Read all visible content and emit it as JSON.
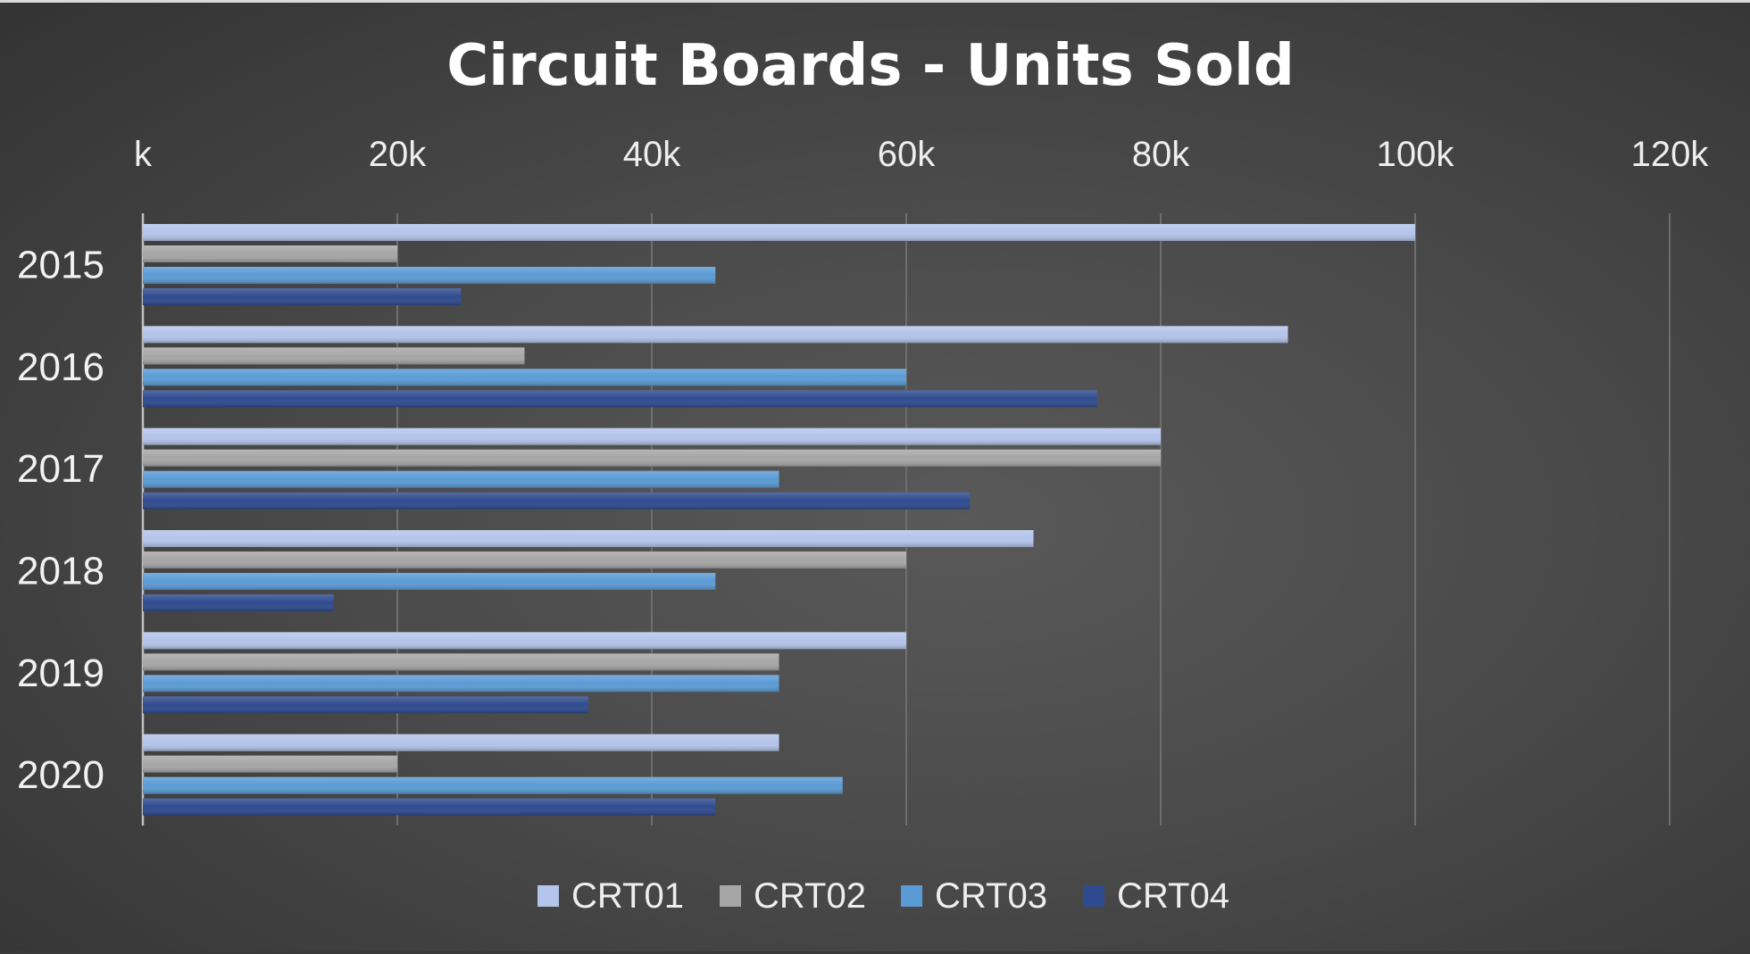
{
  "chart_data": {
    "type": "bar",
    "orientation": "horizontal",
    "title": "Circuit Boards - Units Sold",
    "xlabel": "",
    "ylabel": "",
    "x_axis_position": "top",
    "xlim": [
      0,
      120000
    ],
    "x_ticks": [
      0,
      20000,
      40000,
      60000,
      80000,
      100000,
      120000
    ],
    "x_tick_labels": [
      "k",
      "20k",
      "40k",
      "60k",
      "80k",
      "100k",
      "120k"
    ],
    "categories": [
      "2015",
      "2016",
      "2017",
      "2018",
      "2019",
      "2020"
    ],
    "series": [
      {
        "name": "CRT01",
        "color": "#b4c4ea",
        "values": [
          100000,
          90000,
          80000,
          70000,
          60000,
          50000
        ]
      },
      {
        "name": "CRT02",
        "color": "#a6a6a6",
        "values": [
          20000,
          30000,
          80000,
          60000,
          50000,
          20000
        ]
      },
      {
        "name": "CRT03",
        "color": "#5b9bd5",
        "values": [
          45000,
          60000,
          50000,
          45000,
          50000,
          55000
        ]
      },
      {
        "name": "CRT04",
        "color": "#2f4b8f",
        "values": [
          25000,
          75000,
          65000,
          15000,
          35000,
          45000
        ]
      }
    ],
    "grid": true,
    "legend_position": "bottom"
  }
}
